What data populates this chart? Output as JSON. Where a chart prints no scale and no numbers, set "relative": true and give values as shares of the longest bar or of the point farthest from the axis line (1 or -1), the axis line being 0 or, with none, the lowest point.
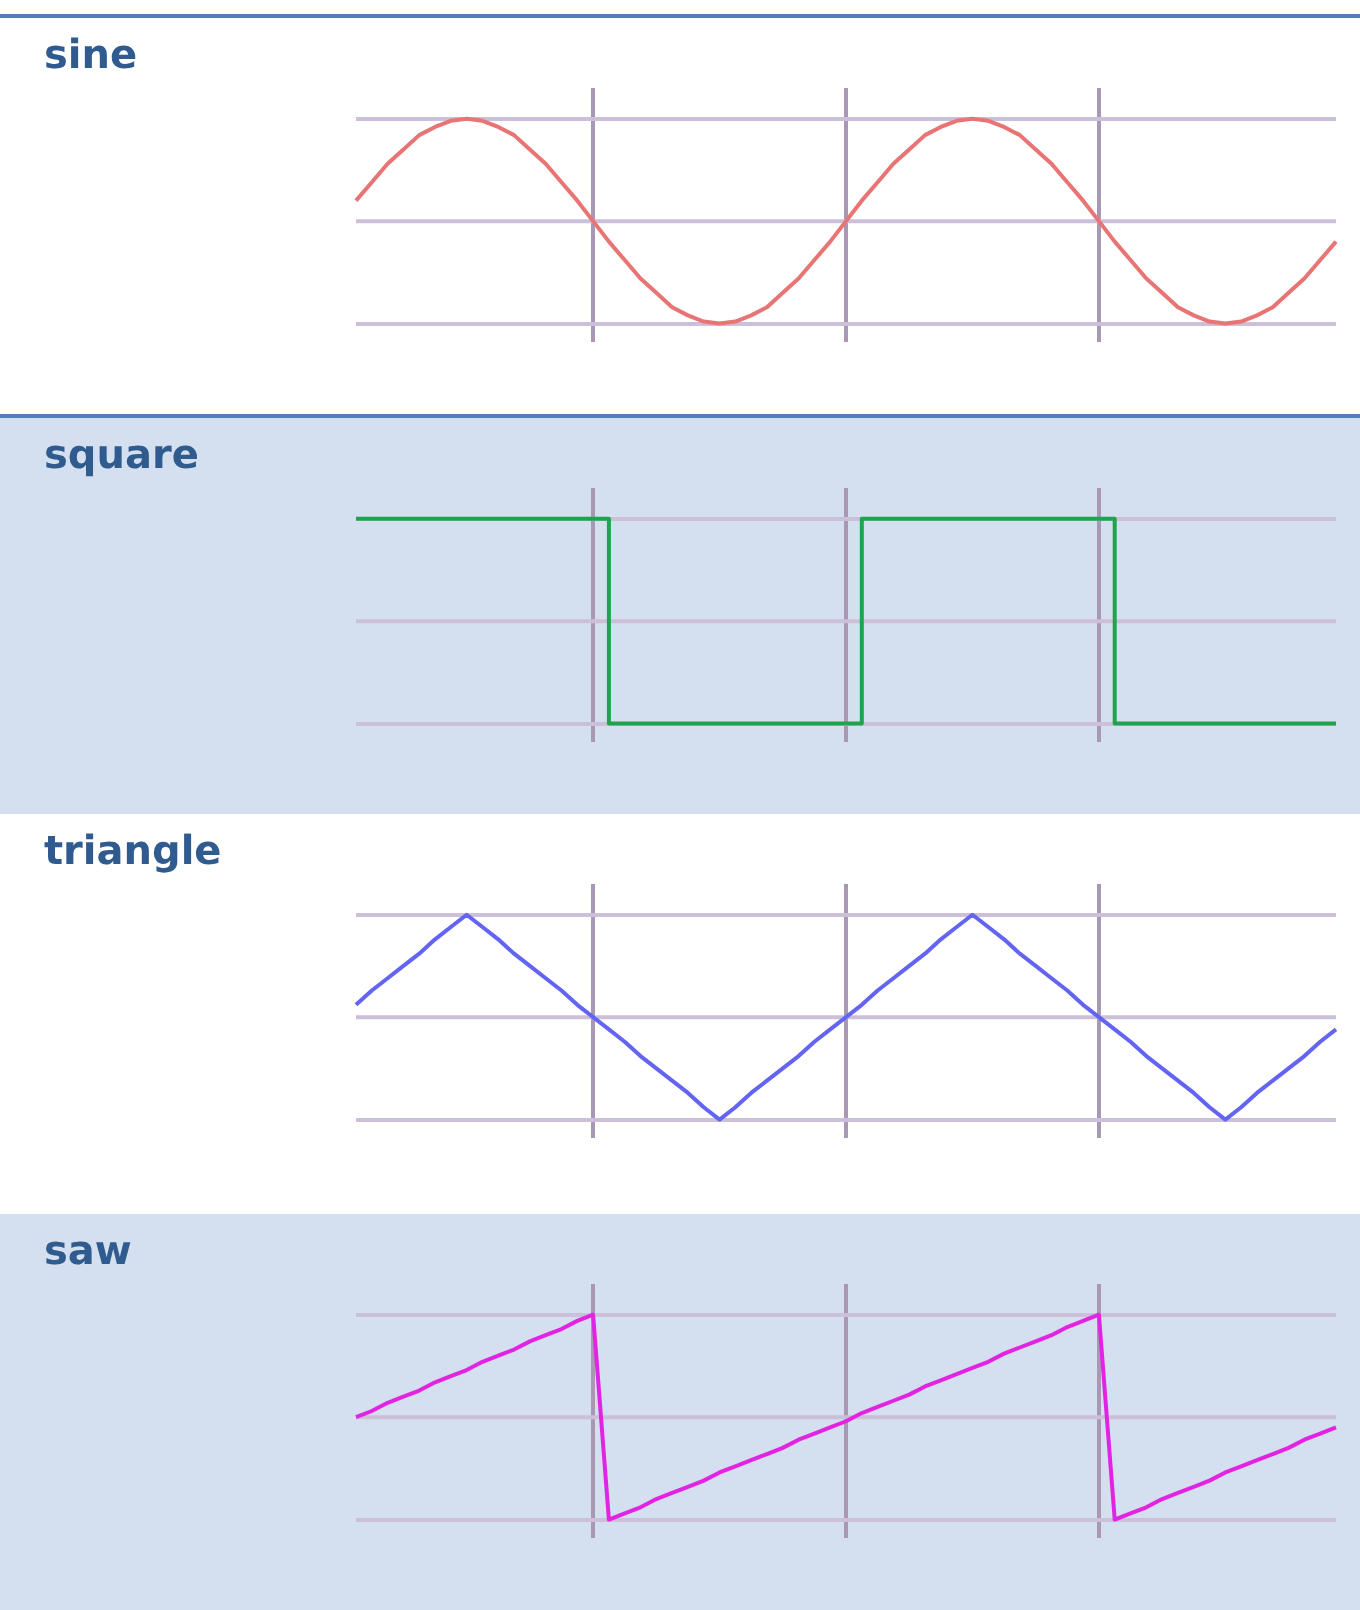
{
  "chart_data": [
    {
      "type": "line",
      "title": "sine",
      "relative": true,
      "ref_lines": [
        {
          "axis": "y",
          "value": 0.5,
          "color": "#cbbfd9"
        }
      ],
      "grid": true,
      "color": "#e87474",
      "categories": [
        null,
        null,
        null,
        null,
        null,
        null,
        null,
        null,
        null,
        null,
        null,
        null,
        null,
        null,
        null,
        null,
        null,
        null,
        null,
        null,
        null,
        null,
        null,
        null,
        null,
        null,
        null,
        null,
        null,
        null,
        null,
        null,
        null,
        null,
        null,
        null,
        null,
        null,
        null,
        null,
        null,
        null,
        null,
        null,
        null,
        null,
        null,
        null,
        null,
        null,
        null,
        null,
        null,
        null,
        null,
        null,
        null,
        null,
        null,
        null,
        null,
        null,
        null
      ],
      "values": [
        0.6,
        0.69,
        0.78,
        0.85,
        0.92,
        0.96,
        0.99,
        1,
        0.99,
        0.96,
        0.92,
        0.85,
        0.78,
        0.69,
        0.6,
        0.5,
        0.4,
        0.31,
        0.22,
        0.15,
        0.08,
        0.04,
        0.01,
        0,
        0.01,
        0.04,
        0.08,
        0.15,
        0.22,
        0.31,
        0.4,
        0.5,
        0.6,
        0.69,
        0.78,
        0.85,
        0.92,
        0.96,
        0.99,
        1,
        0.99,
        0.96,
        0.92,
        0.85,
        0.78,
        0.69,
        0.6,
        0.5,
        0.4,
        0.31,
        0.22,
        0.15,
        0.08,
        0.04,
        0.01,
        0,
        0.01,
        0.04,
        0.08,
        0.15,
        0.22,
        0.31,
        0.4
      ]
    },
    {
      "type": "step",
      "title": "square",
      "relative": true,
      "ref_lines": [
        {
          "axis": "y",
          "value": 0.5,
          "color": "#cbbfd9"
        }
      ],
      "grid": true,
      "color": "#1ea44a",
      "categories": [
        null,
        null,
        null,
        null,
        null,
        null,
        null,
        null,
        null,
        null,
        null,
        null,
        null,
        null,
        null,
        null,
        null,
        null,
        null,
        null,
        null,
        null,
        null,
        null,
        null,
        null,
        null,
        null,
        null,
        null,
        null,
        null,
        null,
        null,
        null,
        null,
        null,
        null,
        null,
        null,
        null,
        null,
        null,
        null,
        null,
        null,
        null,
        null,
        null,
        null,
        null,
        null,
        null,
        null,
        null,
        null,
        null,
        null,
        null,
        null,
        null,
        null,
        null
      ],
      "values": [
        1,
        1,
        1,
        1,
        1,
        1,
        1,
        1,
        1,
        1,
        1,
        1,
        1,
        1,
        1,
        1,
        0,
        0,
        0,
        0,
        0,
        0,
        0,
        0,
        0,
        0,
        0,
        0,
        0,
        0,
        0,
        0,
        1,
        1,
        1,
        1,
        1,
        1,
        1,
        1,
        1,
        1,
        1,
        1,
        1,
        1,
        1,
        1,
        0,
        0,
        0,
        0,
        0,
        0,
        0,
        0,
        0,
        0,
        0,
        0,
        0,
        0,
        0
      ]
    },
    {
      "type": "line",
      "title": "triangle",
      "relative": true,
      "ref_lines": [
        {
          "axis": "y",
          "value": 0.5,
          "color": "#cbbfd9"
        }
      ],
      "grid": true,
      "color": "#6464f2",
      "categories": [
        null,
        null,
        null,
        null,
        null,
        null,
        null,
        null,
        null,
        null,
        null,
        null,
        null,
        null,
        null,
        null,
        null,
        null,
        null,
        null,
        null,
        null,
        null,
        null,
        null,
        null,
        null,
        null,
        null,
        null,
        null,
        null,
        null,
        null,
        null,
        null,
        null,
        null,
        null,
        null,
        null,
        null,
        null,
        null,
        null,
        null,
        null,
        null,
        null,
        null,
        null,
        null,
        null,
        null,
        null,
        null,
        null,
        null,
        null,
        null,
        null,
        null,
        null
      ],
      "values": [
        0.56,
        0.63,
        0.69,
        0.75,
        0.81,
        0.88,
        0.94,
        1,
        0.94,
        0.88,
        0.81,
        0.75,
        0.69,
        0.63,
        0.56,
        0.5,
        0.44,
        0.38,
        0.31,
        0.25,
        0.19,
        0.13,
        0.06,
        0,
        0.06,
        0.13,
        0.19,
        0.25,
        0.31,
        0.38,
        0.44,
        0.5,
        0.56,
        0.63,
        0.69,
        0.75,
        0.81,
        0.88,
        0.94,
        1,
        0.94,
        0.88,
        0.81,
        0.75,
        0.69,
        0.63,
        0.56,
        0.5,
        0.44,
        0.38,
        0.31,
        0.25,
        0.19,
        0.13,
        0.06,
        0,
        0.06,
        0.13,
        0.19,
        0.25,
        0.31,
        0.38,
        0.44
      ]
    },
    {
      "type": "line",
      "title": "saw",
      "relative": true,
      "ref_lines": [
        {
          "axis": "y",
          "value": 0.5,
          "color": "#cbbfd9"
        }
      ],
      "grid": true,
      "color": "#e224e2",
      "categories": [
        null,
        null,
        null,
        null,
        null,
        null,
        null,
        null,
        null,
        null,
        null,
        null,
        null,
        null,
        null,
        null,
        null,
        null,
        null,
        null,
        null,
        null,
        null,
        null,
        null,
        null,
        null,
        null,
        null,
        null,
        null,
        null,
        null,
        null,
        null,
        null,
        null,
        null,
        null,
        null,
        null,
        null,
        null,
        null,
        null,
        null,
        null,
        null,
        null,
        null,
        null,
        null,
        null,
        null,
        null,
        null,
        null,
        null,
        null,
        null,
        null,
        null,
        null
      ],
      "values": [
        0.5,
        0.53,
        0.57,
        0.6,
        0.63,
        0.67,
        0.7,
        0.73,
        0.77,
        0.8,
        0.83,
        0.87,
        0.9,
        0.93,
        0.97,
        1,
        0,
        0.03,
        0.06,
        0.1,
        0.13,
        0.16,
        0.19,
        0.23,
        0.26,
        0.29,
        0.32,
        0.35,
        0.39,
        0.42,
        0.45,
        0.48,
        0.52,
        0.55,
        0.58,
        0.61,
        0.65,
        0.68,
        0.71,
        0.74,
        0.77,
        0.81,
        0.84,
        0.87,
        0.9,
        0.94,
        0.97,
        1,
        0,
        0.03,
        0.06,
        0.1,
        0.13,
        0.16,
        0.19,
        0.23,
        0.26,
        0.29,
        0.32,
        0.35,
        0.39,
        0.42,
        0.45
      ]
    }
  ]
}
